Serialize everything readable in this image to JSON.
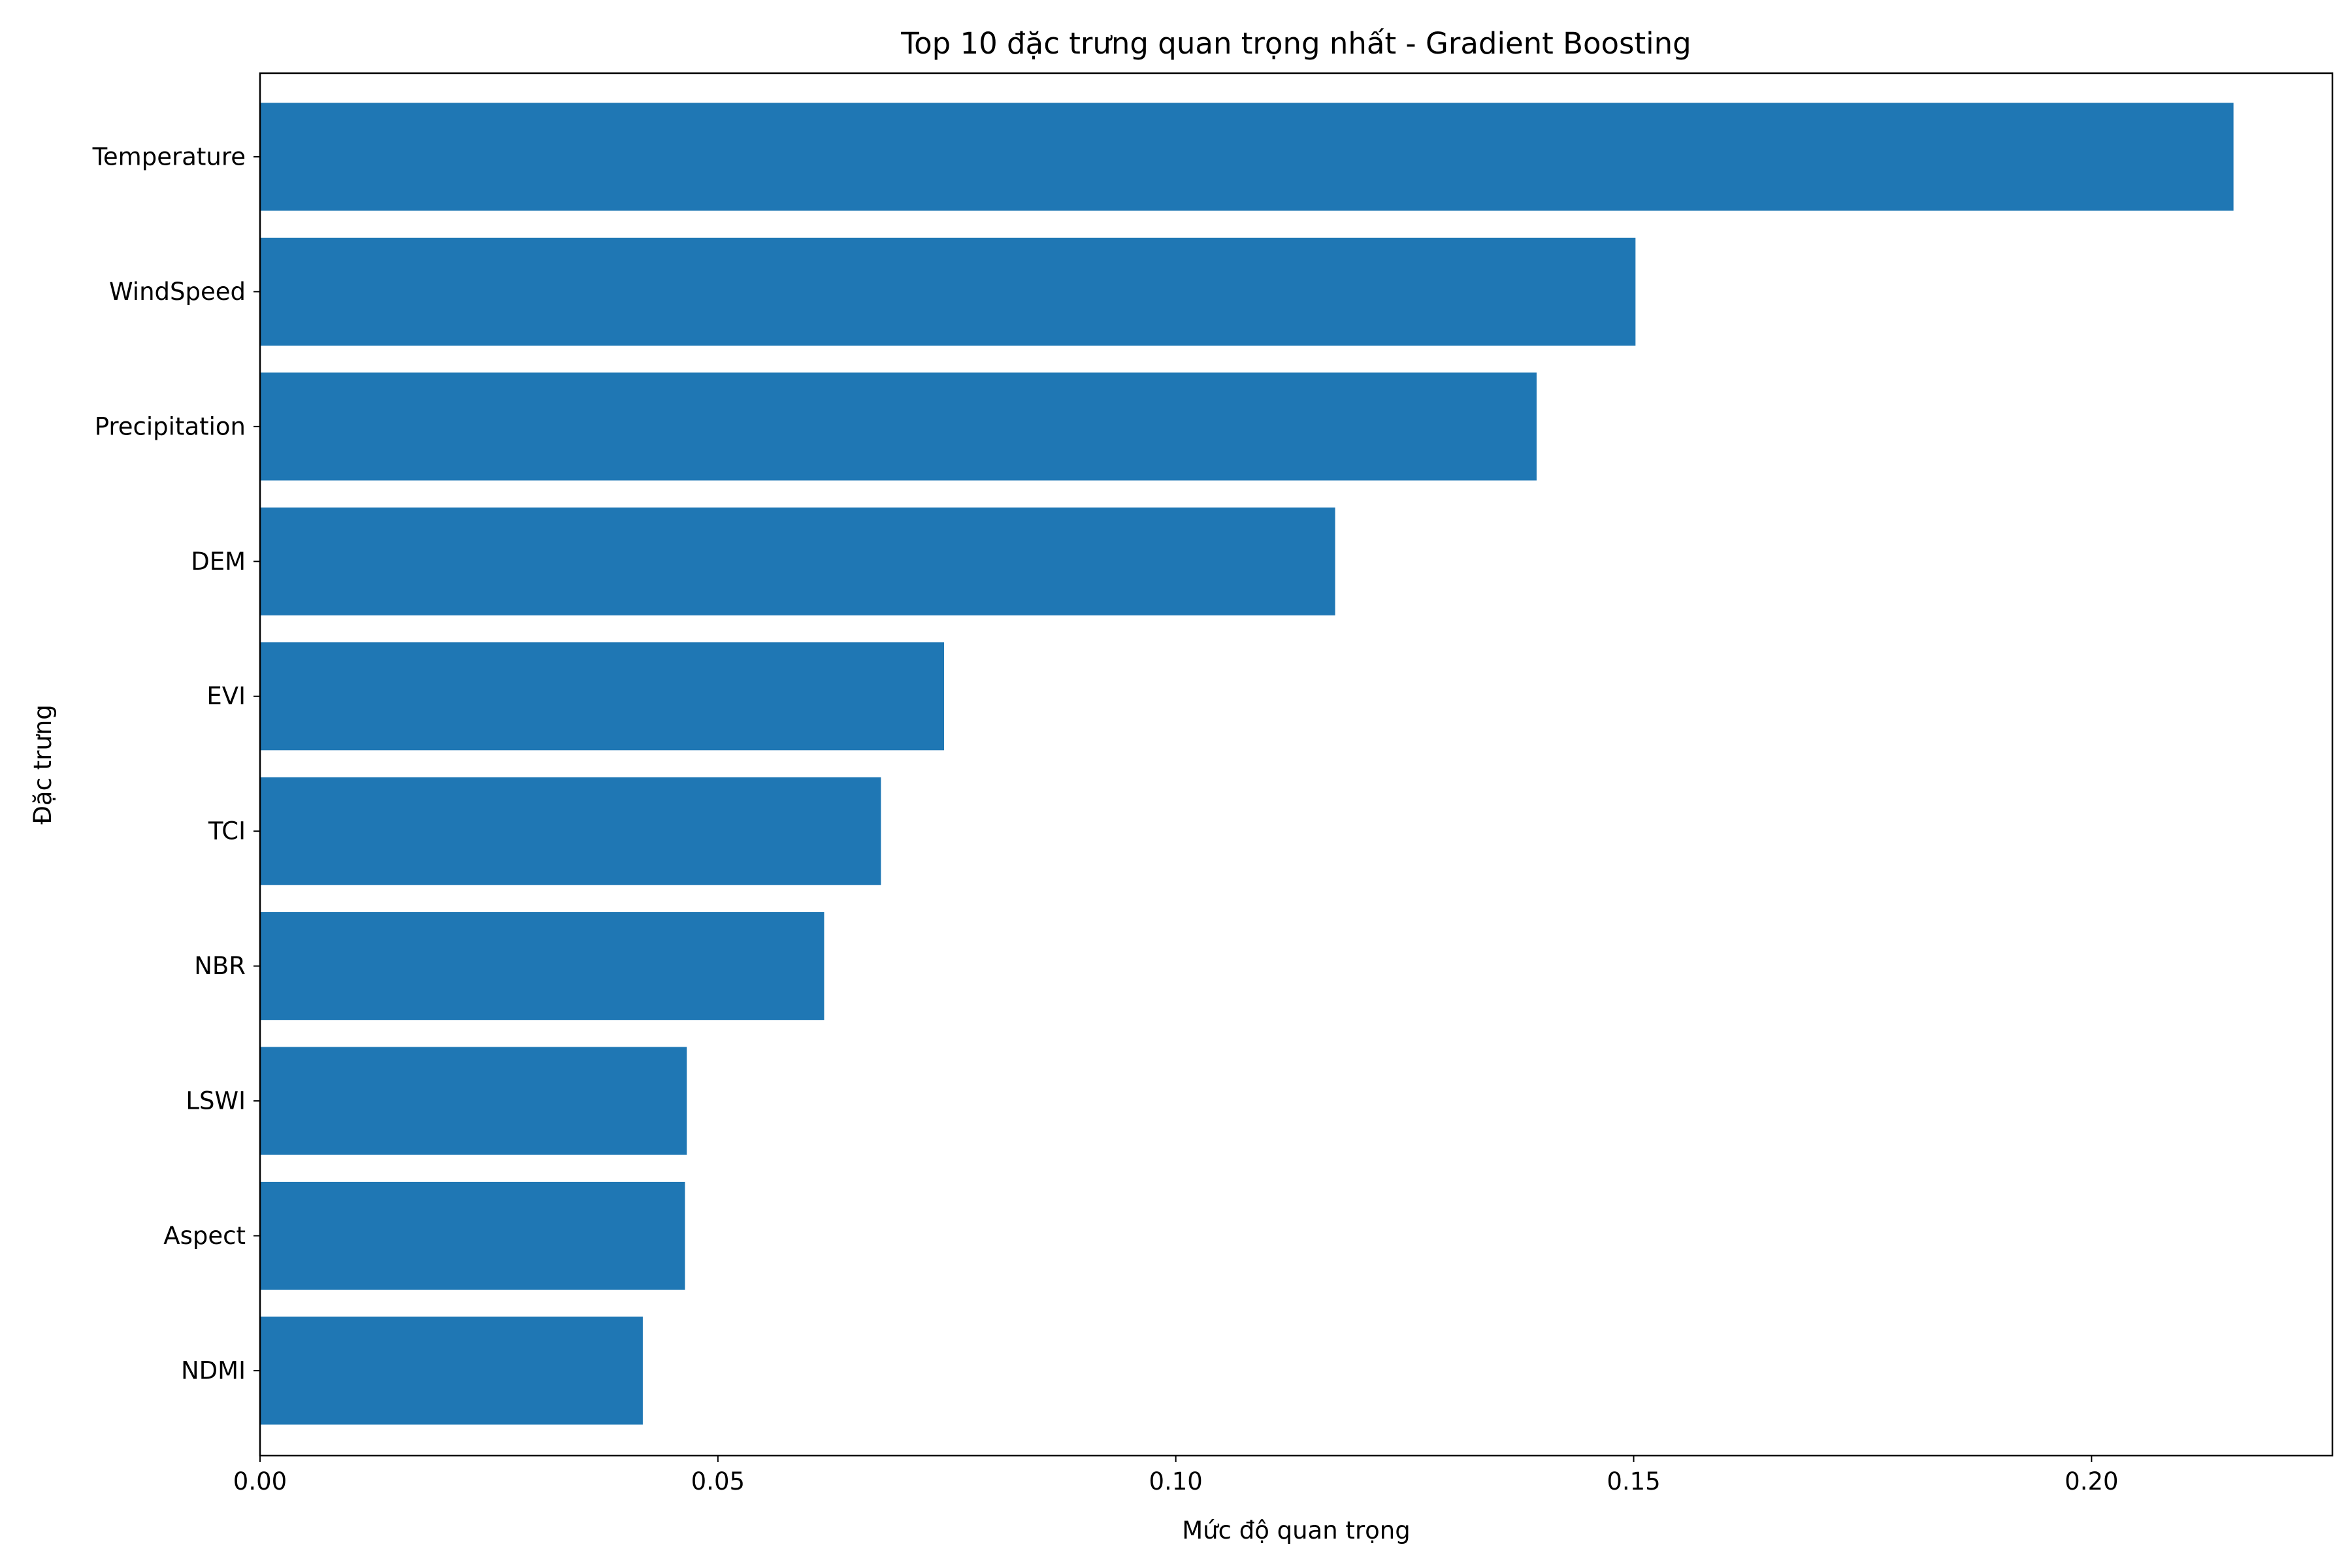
{
  "chart_data": {
    "type": "bar",
    "orientation": "horizontal",
    "title": "Top 10 đặc trưng quan trọng nhất - Gradient Boosting",
    "xlabel": "Mức độ quan trọng",
    "ylabel": "Đặc trưng",
    "categories": [
      "Temperature",
      "WindSpeed",
      "Precipitation",
      "DEM",
      "EVI",
      "TCI",
      "NBR",
      "LSWI",
      "Aspect",
      "NDMI"
    ],
    "values": [
      0.2155,
      0.1502,
      0.1394,
      0.1174,
      0.0747,
      0.0678,
      0.0616,
      0.0466,
      0.0464,
      0.0418
    ],
    "xlim": [
      0,
      0.2263
    ],
    "xticks": [
      0.0,
      0.05,
      0.1,
      0.15,
      0.2
    ],
    "xtick_labels": [
      "0.00",
      "0.05",
      "0.10",
      "0.15",
      "0.20"
    ],
    "grid": false,
    "legend": "none",
    "bar_color": "#1f77b4"
  }
}
